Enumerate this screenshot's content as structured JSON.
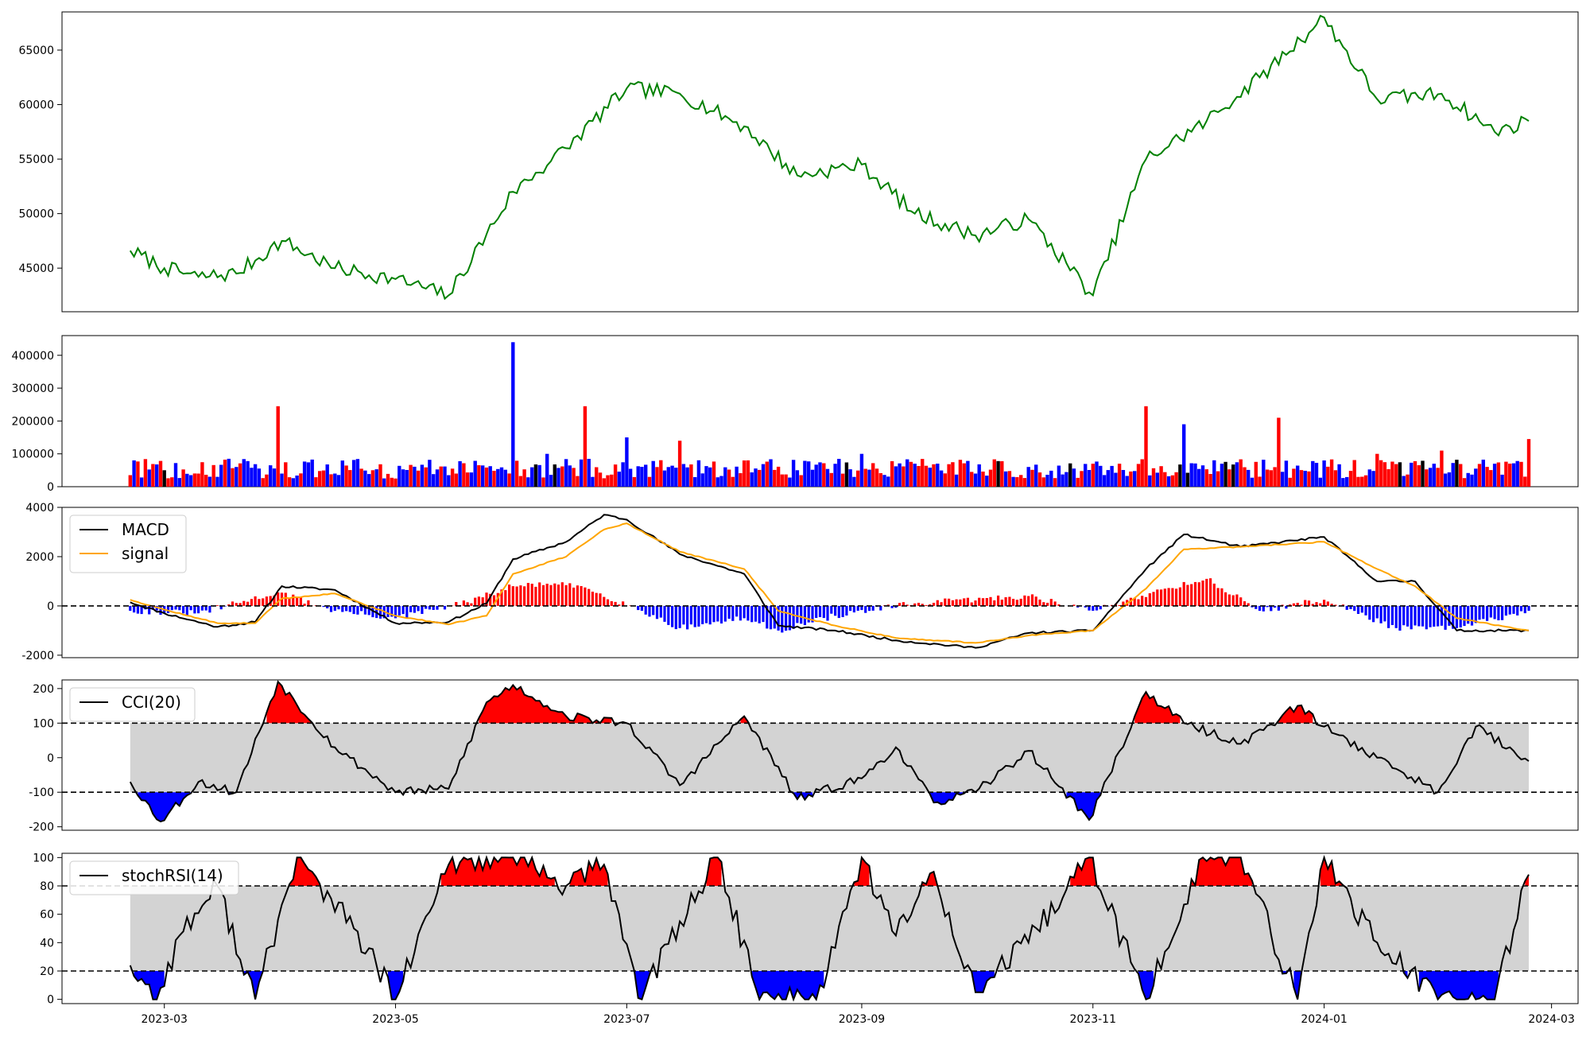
{
  "chart_data": [
    {
      "type": "line",
      "panel": "price",
      "ylim": [
        41000,
        68500
      ],
      "yticks": [
        45000,
        50000,
        55000,
        60000,
        65000
      ],
      "color": "#008000",
      "dates": [
        "2023-02-20",
        "2023-03-01",
        "2023-03-10",
        "2023-03-20",
        "2023-04-01",
        "2023-04-15",
        "2023-05-01",
        "2023-05-15",
        "2023-06-01",
        "2023-06-15",
        "2023-07-01",
        "2023-07-15",
        "2023-08-01",
        "2023-08-15",
        "2023-09-01",
        "2023-09-15",
        "2023-10-01",
        "2023-10-15",
        "2023-11-01",
        "2023-11-15",
        "2023-12-01",
        "2023-12-15",
        "2024-01-01",
        "2024-01-15",
        "2024-02-01",
        "2024-02-15",
        "2024-02-24"
      ],
      "values": [
        46600,
        45000,
        44200,
        44500,
        47500,
        45000,
        44000,
        42500,
        52000,
        56000,
        61500,
        61000,
        58000,
        53500,
        54500,
        50000,
        48000,
        49500,
        42500,
        55000,
        58500,
        62500,
        68000,
        60500,
        61000,
        57500,
        58500
      ]
    },
    {
      "type": "bar",
      "panel": "volume",
      "ylim": [
        0,
        460000
      ],
      "yticks": [
        0,
        100000,
        200000,
        300000,
        400000
      ],
      "up_color": "#ff0000",
      "down_color": "#0000ff",
      "flat_color": "#000000",
      "dates": [
        "2023-02-20",
        "2023-03-01",
        "2023-03-10",
        "2023-03-20",
        "2023-03-31",
        "2023-04-15",
        "2023-05-01",
        "2023-05-15",
        "2023-06-01",
        "2023-06-10",
        "2023-06-20",
        "2023-07-01",
        "2023-07-15",
        "2023-08-01",
        "2023-08-15",
        "2023-09-01",
        "2023-09-15",
        "2023-10-01",
        "2023-10-15",
        "2023-11-01",
        "2023-11-15",
        "2023-11-25",
        "2023-12-05",
        "2023-12-20",
        "2024-01-01",
        "2024-01-15",
        "2024-02-01",
        "2024-02-15",
        "2024-02-24"
      ],
      "values": [
        35000,
        50000,
        40000,
        60000,
        245000,
        40000,
        25000,
        35000,
        440000,
        100000,
        245000,
        150000,
        140000,
        80000,
        50000,
        100000,
        70000,
        40000,
        60000,
        70000,
        245000,
        190000,
        70000,
        210000,
        80000,
        100000,
        110000,
        70000,
        145000
      ]
    },
    {
      "type": "line",
      "panel": "macd",
      "ylim": [
        -2100,
        4000
      ],
      "yticks": [
        -2000,
        0,
        2000,
        4000
      ],
      "legend": [
        {
          "name": "MACD",
          "color": "#000000"
        },
        {
          "name": "signal",
          "color": "#ffa500"
        }
      ],
      "legend_position": "upper-left",
      "baseline": 0,
      "dates": [
        "2023-02-20",
        "2023-03-01",
        "2023-03-15",
        "2023-03-25",
        "2023-04-01",
        "2023-04-15",
        "2023-05-01",
        "2023-05-15",
        "2023-05-25",
        "2023-06-01",
        "2023-06-15",
        "2023-06-25",
        "2023-07-01",
        "2023-07-15",
        "2023-08-01",
        "2023-08-10",
        "2023-08-25",
        "2023-09-10",
        "2023-10-01",
        "2023-10-15",
        "2023-11-01",
        "2023-11-15",
        "2023-11-25",
        "2023-12-10",
        "2024-01-01",
        "2024-01-15",
        "2024-01-25",
        "2024-02-05",
        "2024-02-24"
      ],
      "series": [
        {
          "name": "MACD",
          "values": [
            150,
            -300,
            -850,
            -650,
            800,
            650,
            -700,
            -650,
            100,
            1900,
            2600,
            3700,
            3500,
            2100,
            1300,
            -800,
            -1000,
            -1400,
            -1700,
            -1100,
            -1000,
            1500,
            2900,
            2400,
            2800,
            1000,
            1000,
            -1000,
            -1000
          ]
        },
        {
          "name": "signal",
          "values": [
            250,
            -150,
            -700,
            -700,
            300,
            500,
            -400,
            -750,
            -400,
            1300,
            2000,
            3100,
            3350,
            2200,
            1500,
            -200,
            -800,
            -1300,
            -1500,
            -1200,
            -1000,
            700,
            2300,
            2400,
            2600,
            1500,
            800,
            -500,
            -1000
          ]
        }
      ],
      "hist_dates": [
        "2023-02-20",
        "2023-03-10",
        "2023-03-31",
        "2023-04-15",
        "2023-05-01",
        "2023-05-20",
        "2023-06-01",
        "2023-06-10",
        "2023-06-20",
        "2023-07-05",
        "2023-07-15",
        "2023-08-01",
        "2023-08-10",
        "2023-08-25",
        "2023-09-15",
        "2023-10-15",
        "2023-11-01",
        "2023-11-20",
        "2023-12-01",
        "2023-12-15",
        "2024-01-01",
        "2024-01-20",
        "2024-02-05",
        "2024-02-24"
      ],
      "hist_values": [
        -200,
        -300,
        550,
        -200,
        -500,
        150,
        800,
        900,
        750,
        -200,
        -900,
        -500,
        -1000,
        -400,
        100,
        400,
        -200,
        700,
        1100,
        -200,
        250,
        -900,
        -900,
        -200
      ]
    },
    {
      "type": "line",
      "panel": "cci",
      "legend": [
        {
          "name": "CCI(20)",
          "color": "#000000"
        }
      ],
      "legend_position": "upper-left",
      "ylim": [
        -210,
        225
      ],
      "yticks": [
        -200,
        -100,
        0,
        100,
        200
      ],
      "bands": [
        -100,
        100
      ],
      "dates": [
        "2023-02-20",
        "2023-02-28",
        "2023-03-10",
        "2023-03-20",
        "2023-03-31",
        "2023-04-15",
        "2023-05-01",
        "2023-05-15",
        "2023-05-25",
        "2023-06-01",
        "2023-06-15",
        "2023-07-01",
        "2023-07-15",
        "2023-08-01",
        "2023-08-15",
        "2023-09-01",
        "2023-09-10",
        "2023-09-20",
        "2023-10-01",
        "2023-10-15",
        "2023-10-31",
        "2023-11-15",
        "2023-11-25",
        "2023-12-10",
        "2023-12-25",
        "2024-01-01",
        "2024-01-15",
        "2024-01-31",
        "2024-02-10",
        "2024-02-24"
      ],
      "values": [
        -70,
        -185,
        -70,
        -100,
        220,
        30,
        -100,
        -90,
        160,
        210,
        120,
        100,
        -80,
        120,
        -120,
        -60,
        30,
        -130,
        -100,
        20,
        -180,
        190,
        100,
        40,
        150,
        90,
        0,
        -100,
        90,
        -10
      ]
    },
    {
      "type": "line",
      "panel": "stochrsi",
      "legend": [
        {
          "name": "stochRSI(14)",
          "color": "#000000"
        }
      ],
      "legend_position": "upper-left",
      "ylim": [
        -3,
        103
      ],
      "yticks": [
        0,
        20,
        40,
        60,
        80,
        100
      ],
      "bands": [
        20,
        80
      ],
      "dates": [
        "2023-02-20",
        "2023-02-27",
        "2023-03-05",
        "2023-03-15",
        "2023-03-25",
        "2023-04-05",
        "2023-04-20",
        "2023-05-01",
        "2023-05-15",
        "2023-05-25",
        "2023-06-01",
        "2023-06-15",
        "2023-06-25",
        "2023-07-05",
        "2023-07-15",
        "2023-07-25",
        "2023-08-05",
        "2023-08-20",
        "2023-09-01",
        "2023-09-10",
        "2023-09-20",
        "2023-10-01",
        "2023-10-15",
        "2023-10-31",
        "2023-11-15",
        "2023-11-30",
        "2023-12-10",
        "2023-12-25",
        "2024-01-01",
        "2024-01-15",
        "2024-01-31",
        "2024-02-15",
        "2024-02-24"
      ],
      "values": [
        24,
        0,
        45,
        80,
        0,
        100,
        50,
        0,
        95,
        100,
        100,
        80,
        95,
        0,
        55,
        100,
        0,
        0,
        100,
        45,
        90,
        5,
        40,
        100,
        0,
        100,
        100,
        0,
        100,
        40,
        0,
        0,
        88
      ]
    },
    {
      "type": "axis",
      "panel": "shared-x",
      "xlim": [
        "2023-02-02",
        "2024-03-08"
      ],
      "xticks": [
        "2023-03",
        "2023-05",
        "2023-07",
        "2023-09",
        "2023-11",
        "2024-01",
        "2024-03"
      ]
    }
  ]
}
